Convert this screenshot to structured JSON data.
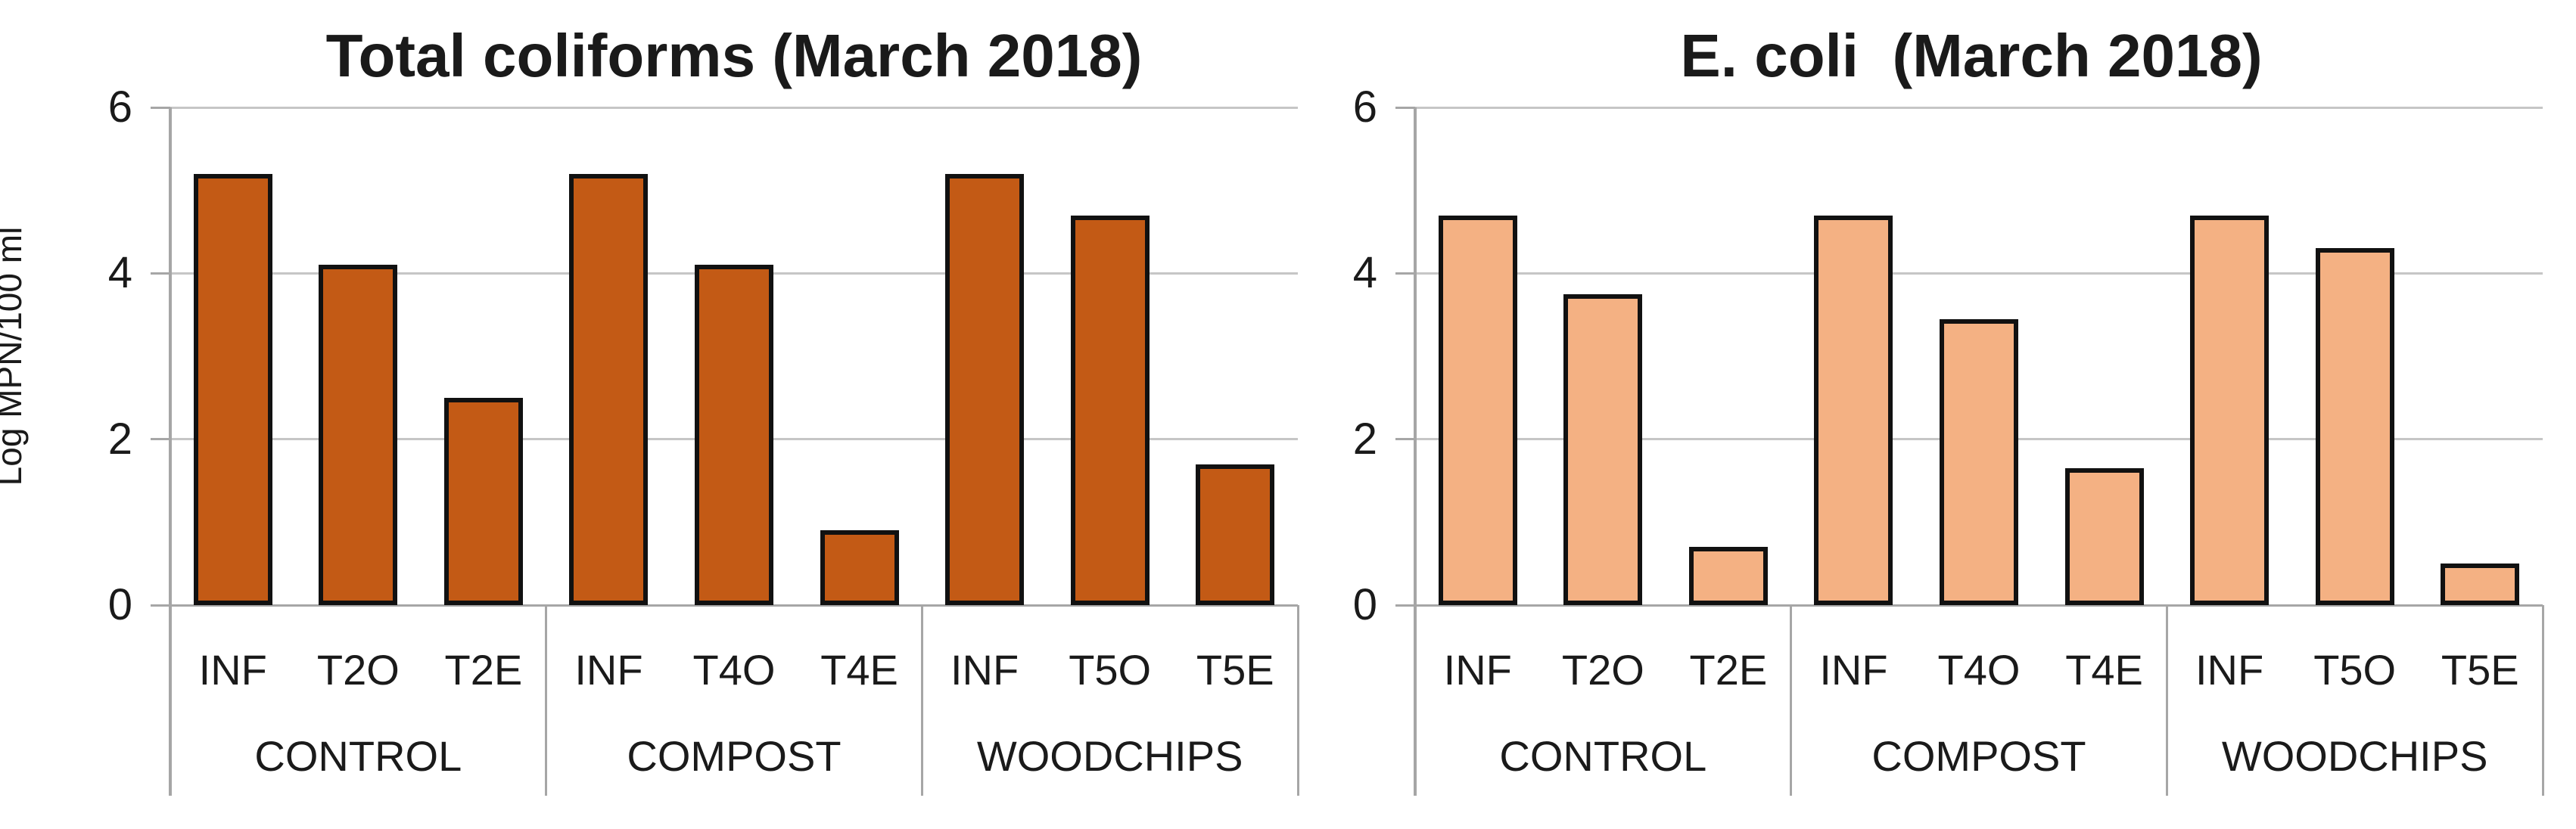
{
  "chart_data": [
    {
      "type": "bar",
      "title": "Total coliforms (March 2018)",
      "ylabel": "Log MPN/100 ml",
      "ylim": [
        0,
        6
      ],
      "yticks": [
        0,
        2,
        4,
        6
      ],
      "grid": true,
      "legend": "none",
      "bar_color": "#C35A15",
      "categories": [
        "INF",
        "T2O",
        "T2E",
        "INF",
        "T4O",
        "T4E",
        "INF",
        "T5O",
        "T5E"
      ],
      "groups": [
        {
          "label": "CONTROL",
          "categories": [
            "INF",
            "T2O",
            "T2E"
          ],
          "values": [
            5.2,
            4.1,
            2.5
          ]
        },
        {
          "label": "COMPOST",
          "categories": [
            "INF",
            "T4O",
            "T4E"
          ],
          "values": [
            5.2,
            4.1,
            0.9
          ]
        },
        {
          "label": "WOODCHIPS",
          "categories": [
            "INF",
            "T5O",
            "T5E"
          ],
          "values": [
            5.2,
            4.7,
            1.7
          ]
        }
      ]
    },
    {
      "type": "bar",
      "title": "E. coli  (March 2018)",
      "ylabel": "",
      "ylim": [
        0,
        6
      ],
      "yticks": [
        0,
        2,
        4,
        6
      ],
      "grid": true,
      "legend": "none",
      "bar_color": "#F4B183",
      "categories": [
        "INF",
        "T2O",
        "T2E",
        "INF",
        "T4O",
        "T4E",
        "INF",
        "T5O",
        "T5E"
      ],
      "groups": [
        {
          "label": "CONTROL",
          "categories": [
            "INF",
            "T2O",
            "T2E"
          ],
          "values": [
            4.7,
            3.75,
            0.7
          ]
        },
        {
          "label": "COMPOST",
          "categories": [
            "INF",
            "T4O",
            "T4E"
          ],
          "values": [
            4.7,
            3.45,
            1.65
          ]
        },
        {
          "label": "WOODCHIPS",
          "categories": [
            "INF",
            "T5O",
            "T5E"
          ],
          "values": [
            4.7,
            4.3,
            0.5
          ]
        }
      ]
    }
  ],
  "colors": {
    "background": "#FFFFFF",
    "bar_outline": "#111111",
    "gridline": "#C6C6C6",
    "axis": "#A6A6A6",
    "text": "#1A1A1A"
  }
}
